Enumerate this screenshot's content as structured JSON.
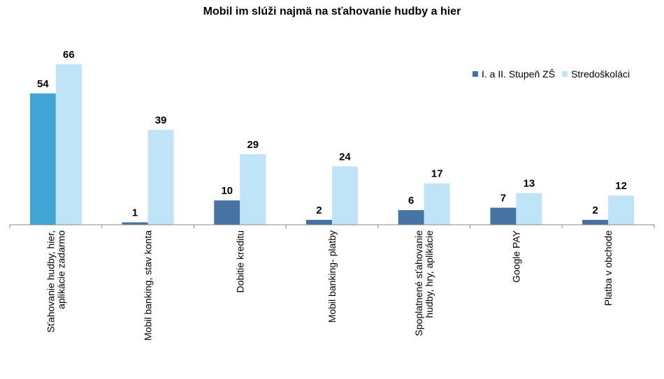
{
  "chart_data": {
    "type": "bar",
    "title": "Mobil im slúži najmä na sťahovanie hudby a hier",
    "categories": [
      [
        "Sťahovanie hudby, hier,",
        "aplikácie zadarmo"
      ],
      [
        "Mobil banking, stav konta"
      ],
      [
        "Dobitie kreditu"
      ],
      [
        "Mobil banking- platby"
      ],
      [
        "Spoplatnené sťahovanie",
        "hudby, hry, aplikácie"
      ],
      [
        "Google PAY"
      ],
      [
        "Platba v obchode"
      ]
    ],
    "series": [
      {
        "name": "I. a II. Stupeň ZŠ",
        "color": "#4672a4",
        "values": [
          54,
          1,
          10,
          2,
          6,
          7,
          2
        ]
      },
      {
        "name": "Stredoškoláci",
        "color": "#bfe3f7",
        "values": [
          66,
          39,
          29,
          24,
          17,
          13,
          12
        ]
      }
    ],
    "highlight": {
      "series": 0,
      "index": 0,
      "color": "#41a6d6"
    },
    "ylim": [
      0,
      70
    ],
    "legend_position": "top-right",
    "grid": false
  }
}
